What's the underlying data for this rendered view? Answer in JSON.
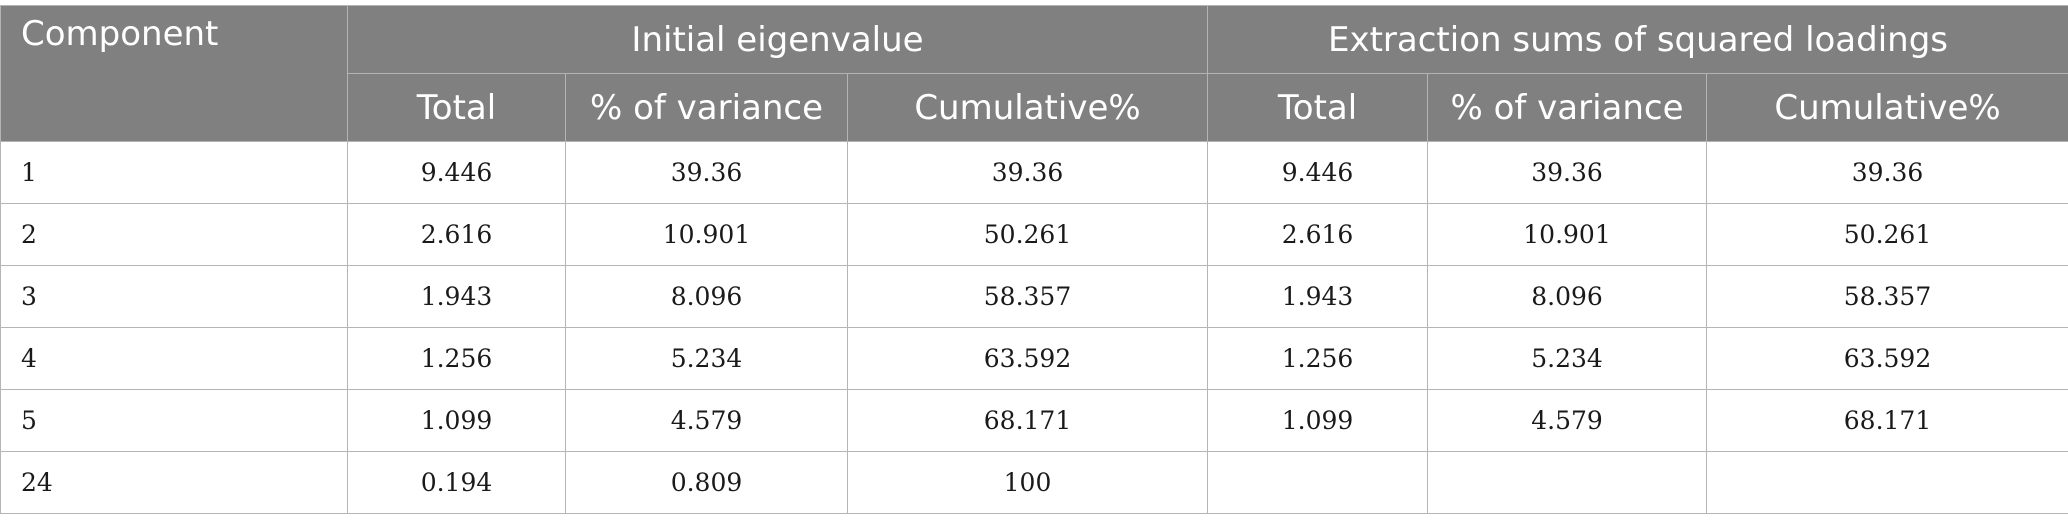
{
  "table": {
    "headers": {
      "component": "Component",
      "group_initial": "Initial eigenvalue",
      "group_extraction": "Extraction sums of squared loadings",
      "sub_total": "Total",
      "sub_variance": "% of variance",
      "sub_cumulative": "Cumulative%"
    },
    "rows": [
      [
        "1",
        "9.446",
        "39.36",
        "39.36",
        "9.446",
        "39.36",
        "39.36"
      ],
      [
        "2",
        "2.616",
        "10.901",
        "50.261",
        "2.616",
        "10.901",
        "50.261"
      ],
      [
        "3",
        "1.943",
        "8.096",
        "58.357",
        "1.943",
        "8.096",
        "58.357"
      ],
      [
        "4",
        "1.256",
        "5.234",
        "63.592",
        "1.256",
        "5.234",
        "63.592"
      ],
      [
        "5",
        "1.099",
        "4.579",
        "68.171",
        "1.099",
        "4.579",
        "68.171"
      ],
      [
        "24",
        "0.194",
        "0.809",
        "100",
        "",
        "",
        ""
      ]
    ]
  }
}
